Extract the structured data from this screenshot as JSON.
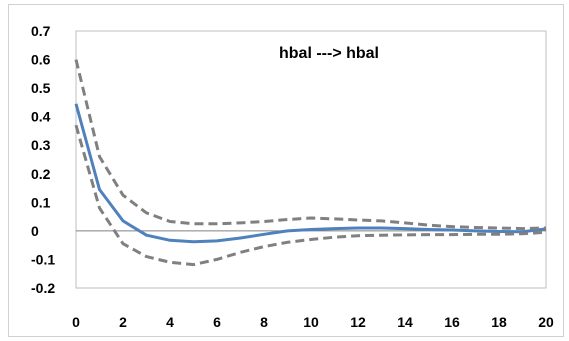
{
  "chart_data": {
    "type": "line",
    "title": "hbal ---> hbal",
    "xlabel": "",
    "ylabel": "",
    "xlim": [
      0,
      20
    ],
    "ylim": [
      -0.2,
      0.7
    ],
    "x_ticks": [
      0,
      2,
      4,
      6,
      8,
      10,
      12,
      14,
      16,
      18,
      20
    ],
    "y_ticks": [
      -0.2,
      -0.1,
      0,
      0.1,
      0.2,
      0.3,
      0.4,
      0.5,
      0.6,
      0.7
    ],
    "y_tick_labels": [
      "-0.2",
      "-0.1",
      "0",
      "0.1",
      "0.2",
      "0.3",
      "0.4",
      "0.5",
      "0.6",
      "0.7"
    ],
    "grid": false,
    "x": [
      0,
      1,
      2,
      3,
      4,
      5,
      6,
      7,
      8,
      9,
      10,
      11,
      12,
      13,
      14,
      15,
      16,
      17,
      18,
      19,
      20
    ],
    "series": [
      {
        "role": "response",
        "color": "#4f81bd",
        "style": "solid",
        "values": [
          0.445,
          0.145,
          0.035,
          -0.015,
          -0.033,
          -0.038,
          -0.035,
          -0.025,
          -0.012,
          0.0,
          0.005,
          0.008,
          0.01,
          0.01,
          0.008,
          0.005,
          0.003,
          0.0,
          -0.002,
          -0.003,
          0.007
        ]
      },
      {
        "role": "upper-band",
        "color": "#808080",
        "style": "dashed",
        "values": [
          0.6,
          0.26,
          0.125,
          0.063,
          0.033,
          0.025,
          0.025,
          0.028,
          0.033,
          0.04,
          0.045,
          0.042,
          0.038,
          0.035,
          0.028,
          0.02,
          0.015,
          0.012,
          0.01,
          0.008,
          0.01
        ]
      },
      {
        "role": "lower-band",
        "color": "#808080",
        "style": "dashed",
        "values": [
          0.37,
          0.08,
          -0.045,
          -0.09,
          -0.11,
          -0.118,
          -0.1,
          -0.075,
          -0.055,
          -0.04,
          -0.03,
          -0.022,
          -0.017,
          -0.015,
          -0.014,
          -0.013,
          -0.013,
          -0.012,
          -0.012,
          -0.01,
          -0.005
        ]
      }
    ]
  }
}
